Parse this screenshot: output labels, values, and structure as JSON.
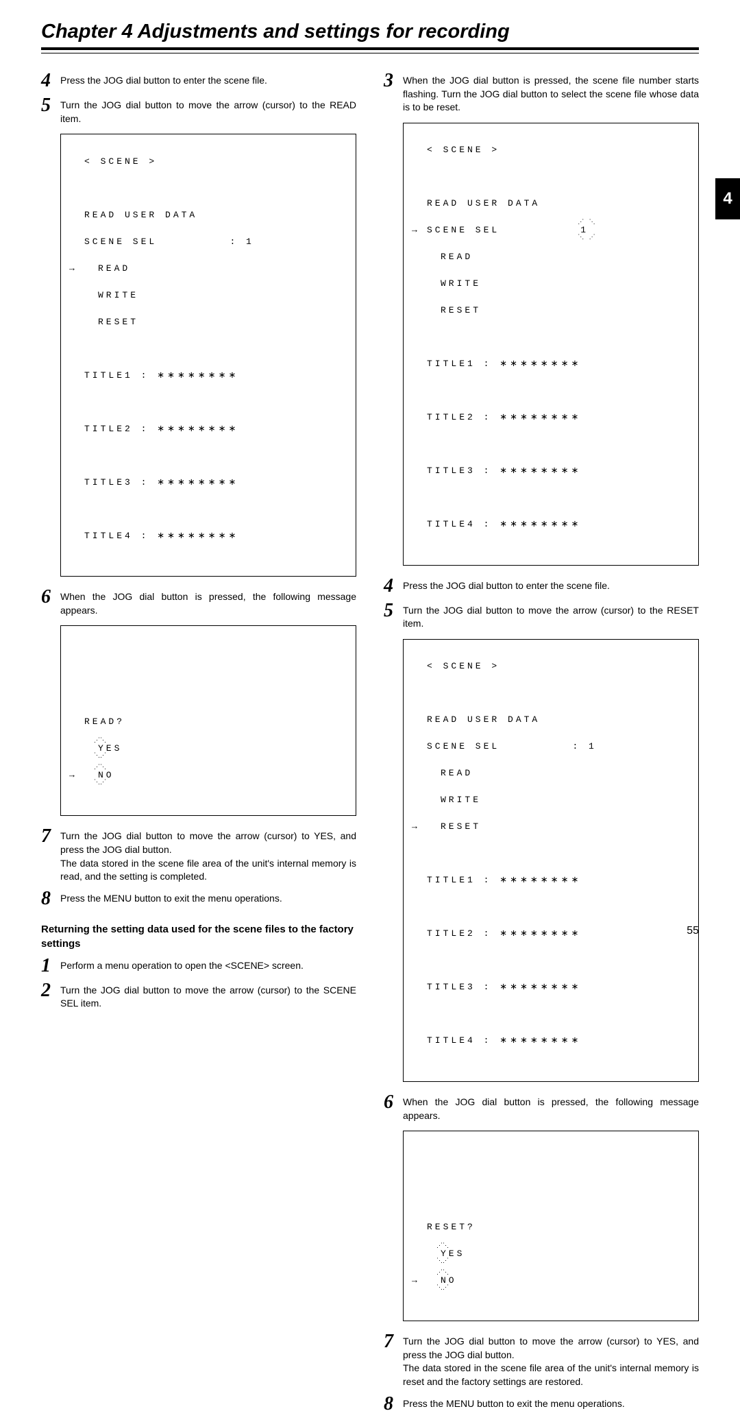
{
  "chapter": {
    "title": "Chapter 4  Adjustments and settings for recording",
    "tab": "4",
    "page_number": "55"
  },
  "left": {
    "step4": "Press the JOG dial button to enter the scene file.",
    "step5": "Turn the JOG dial button to move the arrow (cursor) to the READ item.",
    "screen1": {
      "header": "< SCENE >",
      "l1": "READ USER DATA",
      "l2": "SCENE SEL",
      "l2v": ": 1",
      "l3": "READ",
      "l4": "WRITE",
      "l5": "RESET",
      "t1": "TITLE1 : ∗∗∗∗∗∗∗∗",
      "t2": "TITLE2 : ∗∗∗∗∗∗∗∗",
      "t3": "TITLE3 : ∗∗∗∗∗∗∗∗",
      "t4": "TITLE4 : ∗∗∗∗∗∗∗∗"
    },
    "step6": "When the JOG dial button is pressed, the following message appears.",
    "screen2": {
      "l1": "READ?",
      "l2": "YES",
      "l3": "NO"
    },
    "step7": "Turn the JOG dial button to move the arrow (cursor) to YES, and press the JOG dial button.",
    "step7b": "The data stored in the scene file area of the unit's internal memory is read, and the setting is completed.",
    "step8": "Press the MENU button to exit the menu operations.",
    "subheading": "Returning the setting data used for the scene files to the factory settings",
    "r_step1": "Perform a menu operation to open the <SCENE> screen.",
    "r_step2": "Turn the JOG dial button to move the arrow (cursor) to the SCENE SEL item."
  },
  "right": {
    "step3": "When the JOG dial button is pressed, the scene file number starts flashing.  Turn the JOG dial button to select the scene file whose data is to be reset.",
    "screen3": {
      "header": "< SCENE >",
      "l1": "READ USER DATA",
      "l2": "SCENE SEL",
      "l2v": "1",
      "l3": "READ",
      "l4": "WRITE",
      "l5": "RESET",
      "t1": "TITLE1 : ∗∗∗∗∗∗∗∗",
      "t2": "TITLE2 : ∗∗∗∗∗∗∗∗",
      "t3": "TITLE3 : ∗∗∗∗∗∗∗∗",
      "t4": "TITLE4 : ∗∗∗∗∗∗∗∗"
    },
    "step4": "Press the JOG dial button to enter the scene file.",
    "step5": "Turn the JOG dial button to move the arrow (cursor) to the RESET item.",
    "screen4": {
      "header": "< SCENE >",
      "l1": "READ USER DATA",
      "l2": "SCENE SEL",
      "l2v": ": 1",
      "l3": "READ",
      "l4": "WRITE",
      "l5": "RESET",
      "t1": "TITLE1 : ∗∗∗∗∗∗∗∗",
      "t2": "TITLE2 : ∗∗∗∗∗∗∗∗",
      "t3": "TITLE3 : ∗∗∗∗∗∗∗∗",
      "t4": "TITLE4 : ∗∗∗∗∗∗∗∗"
    },
    "step6": "When the JOG dial button is pressed, the following message appears.",
    "screen5": {
      "l1": "RESET?",
      "l2": "YES",
      "l3": "NO"
    },
    "step7": "Turn the JOG dial button to move the arrow (cursor) to YES, and press the JOG dial button.",
    "step7b": "The data stored in the scene file area of the unit's internal memory is reset and the factory settings are restored.",
    "step8": "Press the MENU button to exit the menu operations."
  }
}
